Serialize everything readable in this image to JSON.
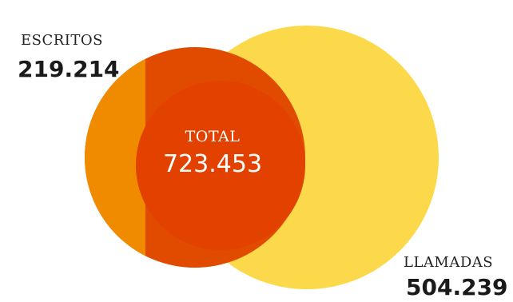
{
  "escritos": {
    "label": "ESCRITOS",
    "value": "219.214",
    "amount": 219214,
    "color": "#F08B00"
  },
  "llamadas": {
    "label": "LLAMADAS",
    "value": "504.239",
    "amount": 504239,
    "color": "#FCD94A"
  },
  "total": {
    "label": "TOTAL",
    "value": "723.453",
    "amount": 723453,
    "color": "#E34100"
  },
  "overlap_color": "#E14B00"
}
